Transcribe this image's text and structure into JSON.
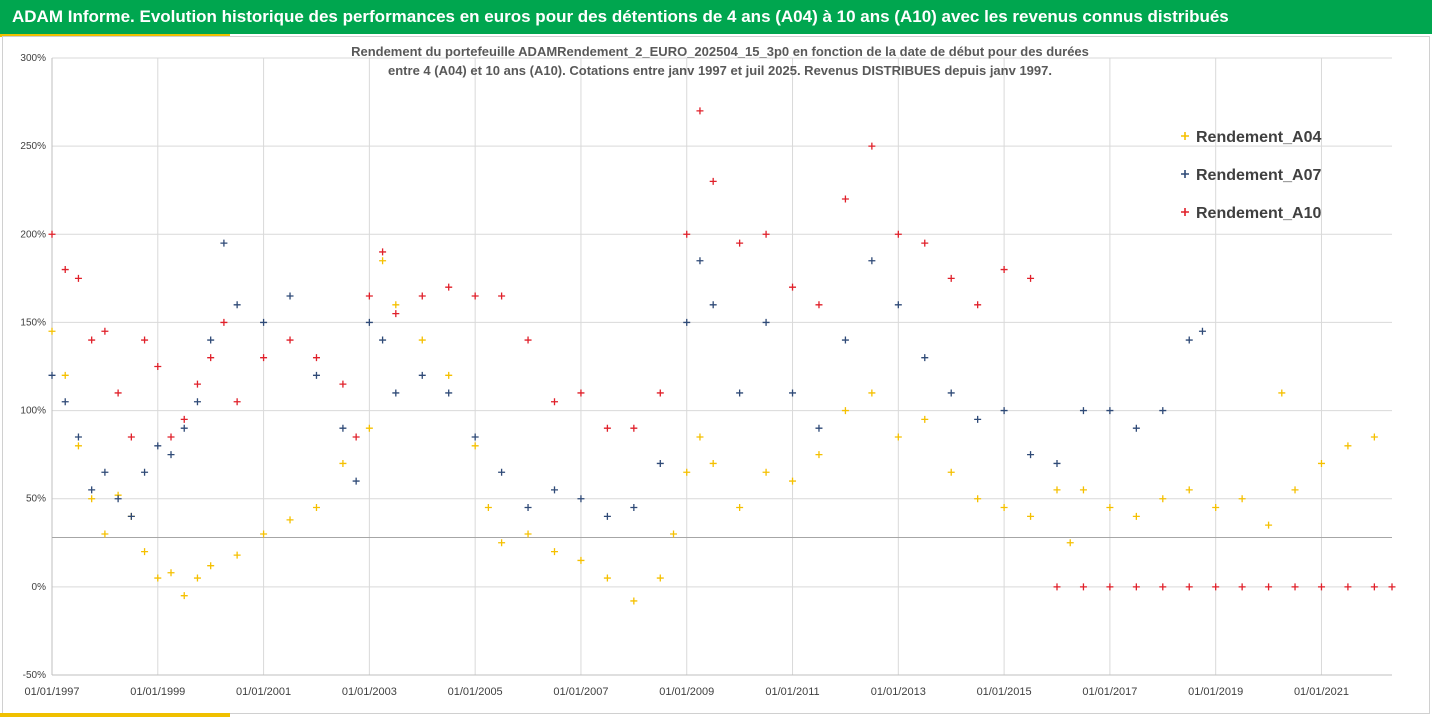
{
  "header": {
    "title": "ADAM Informe. Evolution historique des performances en euros pour des détentions de 4 ans (A04) à 10 ans (A10) avec les revenus connus distribués"
  },
  "colors": {
    "header_bg": "#00a64f",
    "accent": "#f0c000"
  },
  "chart_data": {
    "type": "scatter",
    "subtitle_lines": [
      "Rendement du portefeuille ADAMRendement_2_EURO_202504_15_3p0  en fonction de la date de début pour des durées",
      "entre 4 (A04) et 10 ans (A10). Cotations entre janv 1997 et juil 2025. Revenus DISTRIBUES depuis janv 1997."
    ],
    "ylim": [
      -50,
      300
    ],
    "y_ticks": [
      "300%",
      "250%",
      "200%",
      "150%",
      "100%",
      "50%",
      "0%",
      "-50%"
    ],
    "x_range": [
      "01/01/1997",
      "01/05/2022"
    ],
    "x_ticks": [
      "01/01/1997",
      "01/01/1999",
      "01/01/2001",
      "01/01/2003",
      "01/01/2005",
      "01/01/2007",
      "01/01/2009",
      "01/01/2011",
      "01/01/2013",
      "01/01/2015",
      "01/01/2017",
      "01/01/2019",
      "01/01/2021"
    ],
    "reference_line_y": 28,
    "grid": true,
    "legend_position": "right",
    "marker": "+",
    "series": [
      {
        "name": "Rendement_A04",
        "color": "#f5c000",
        "points": [
          [
            "01/01/1997",
            145
          ],
          [
            "01/04/1997",
            120
          ],
          [
            "01/07/1997",
            80
          ],
          [
            "01/10/1997",
            50
          ],
          [
            "01/01/1998",
            30
          ],
          [
            "01/04/1998",
            52
          ],
          [
            "01/07/1998",
            40
          ],
          [
            "01/10/1998",
            20
          ],
          [
            "01/01/1999",
            5
          ],
          [
            "01/04/1999",
            8
          ],
          [
            "01/07/1999",
            -5
          ],
          [
            "01/10/1999",
            5
          ],
          [
            "01/01/2000",
            12
          ],
          [
            "01/07/2000",
            18
          ],
          [
            "01/01/2001",
            30
          ],
          [
            "01/07/2001",
            38
          ],
          [
            "01/01/2002",
            45
          ],
          [
            "01/07/2002",
            70
          ],
          [
            "01/01/2003",
            90
          ],
          [
            "01/04/2003",
            185
          ],
          [
            "01/07/2003",
            160
          ],
          [
            "01/01/2004",
            140
          ],
          [
            "01/07/2004",
            120
          ],
          [
            "01/01/2005",
            80
          ],
          [
            "01/04/2005",
            45
          ],
          [
            "01/07/2005",
            25
          ],
          [
            "01/01/2006",
            30
          ],
          [
            "01/07/2006",
            20
          ],
          [
            "01/01/2007",
            15
          ],
          [
            "01/07/2007",
            5
          ],
          [
            "01/01/2008",
            -8
          ],
          [
            "01/07/2008",
            5
          ],
          [
            "01/10/2008",
            30
          ],
          [
            "01/01/2009",
            65
          ],
          [
            "01/04/2009",
            85
          ],
          [
            "01/07/2009",
            70
          ],
          [
            "01/01/2010",
            45
          ],
          [
            "01/07/2010",
            65
          ],
          [
            "01/01/2011",
            60
          ],
          [
            "01/07/2011",
            75
          ],
          [
            "01/01/2012",
            100
          ],
          [
            "01/07/2012",
            110
          ],
          [
            "01/01/2013",
            85
          ],
          [
            "01/07/2013",
            95
          ],
          [
            "01/01/2014",
            65
          ],
          [
            "01/07/2014",
            50
          ],
          [
            "01/01/2015",
            45
          ],
          [
            "01/07/2015",
            40
          ],
          [
            "01/01/2016",
            55
          ],
          [
            "01/04/2016",
            25
          ],
          [
            "01/07/2016",
            55
          ],
          [
            "01/01/2017",
            45
          ],
          [
            "01/07/2017",
            40
          ],
          [
            "01/01/2018",
            50
          ],
          [
            "01/07/2018",
            55
          ],
          [
            "01/01/2019",
            45
          ],
          [
            "01/07/2019",
            50
          ],
          [
            "01/01/2020",
            35
          ],
          [
            "01/04/2020",
            110
          ],
          [
            "01/07/2020",
            55
          ],
          [
            "01/01/2021",
            70
          ],
          [
            "01/07/2021",
            80
          ],
          [
            "01/01/2022",
            85
          ]
        ]
      },
      {
        "name": "Rendement_A07",
        "color": "#2f4a77",
        "points": [
          [
            "01/01/1997",
            120
          ],
          [
            "01/04/1997",
            105
          ],
          [
            "01/07/1997",
            85
          ],
          [
            "01/10/1997",
            55
          ],
          [
            "01/01/1998",
            65
          ],
          [
            "01/04/1998",
            50
          ],
          [
            "01/07/1998",
            40
          ],
          [
            "01/10/1998",
            65
          ],
          [
            "01/01/1999",
            80
          ],
          [
            "01/04/1999",
            75
          ],
          [
            "01/07/1999",
            90
          ],
          [
            "01/10/1999",
            105
          ],
          [
            "01/01/2000",
            140
          ],
          [
            "01/04/2000",
            195
          ],
          [
            "01/07/2000",
            160
          ],
          [
            "01/01/2001",
            150
          ],
          [
            "01/07/2001",
            165
          ],
          [
            "01/01/2002",
            120
          ],
          [
            "01/07/2002",
            90
          ],
          [
            "01/10/2002",
            60
          ],
          [
            "01/01/2003",
            150
          ],
          [
            "01/04/2003",
            140
          ],
          [
            "01/07/2003",
            110
          ],
          [
            "01/01/2004",
            120
          ],
          [
            "01/07/2004",
            110
          ],
          [
            "01/01/2005",
            85
          ],
          [
            "01/07/2005",
            65
          ],
          [
            "01/01/2006",
            45
          ],
          [
            "01/07/2006",
            55
          ],
          [
            "01/01/2007",
            50
          ],
          [
            "01/07/2007",
            40
          ],
          [
            "01/01/2008",
            45
          ],
          [
            "01/07/2008",
            70
          ],
          [
            "01/01/2009",
            150
          ],
          [
            "01/04/2009",
            185
          ],
          [
            "01/07/2009",
            160
          ],
          [
            "01/01/2010",
            110
          ],
          [
            "01/07/2010",
            150
          ],
          [
            "01/01/2011",
            110
          ],
          [
            "01/07/2011",
            90
          ],
          [
            "01/01/2012",
            140
          ],
          [
            "01/07/2012",
            185
          ],
          [
            "01/01/2013",
            160
          ],
          [
            "01/07/2013",
            130
          ],
          [
            "01/01/2014",
            110
          ],
          [
            "01/07/2014",
            95
          ],
          [
            "01/01/2015",
            100
          ],
          [
            "01/07/2015",
            75
          ],
          [
            "01/01/2016",
            70
          ],
          [
            "01/07/2016",
            100
          ],
          [
            "01/01/2017",
            100
          ],
          [
            "01/07/2017",
            90
          ],
          [
            "01/01/2018",
            100
          ],
          [
            "01/07/2018",
            140
          ],
          [
            "01/10/2018",
            145
          ]
        ]
      },
      {
        "name": "Rendement_A10",
        "color": "#e0202a",
        "points": [
          [
            "01/01/1997",
            200
          ],
          [
            "01/04/1997",
            180
          ],
          [
            "01/07/1997",
            175
          ],
          [
            "01/10/1997",
            140
          ],
          [
            "01/01/1998",
            145
          ],
          [
            "01/04/1998",
            110
          ],
          [
            "01/07/1998",
            85
          ],
          [
            "01/10/1998",
            140
          ],
          [
            "01/01/1999",
            125
          ],
          [
            "01/04/1999",
            85
          ],
          [
            "01/07/1999",
            95
          ],
          [
            "01/10/1999",
            115
          ],
          [
            "01/01/2000",
            130
          ],
          [
            "01/04/2000",
            150
          ],
          [
            "01/07/2000",
            105
          ],
          [
            "01/01/2001",
            130
          ],
          [
            "01/07/2001",
            140
          ],
          [
            "01/01/2002",
            130
          ],
          [
            "01/07/2002",
            115
          ],
          [
            "01/10/2002",
            85
          ],
          [
            "01/01/2003",
            165
          ],
          [
            "01/04/2003",
            190
          ],
          [
            "01/07/2003",
            155
          ],
          [
            "01/01/2004",
            165
          ],
          [
            "01/07/2004",
            170
          ],
          [
            "01/01/2005",
            165
          ],
          [
            "01/07/2005",
            165
          ],
          [
            "01/01/2006",
            140
          ],
          [
            "01/07/2006",
            105
          ],
          [
            "01/01/2007",
            110
          ],
          [
            "01/07/2007",
            90
          ],
          [
            "01/01/2008",
            90
          ],
          [
            "01/07/2008",
            110
          ],
          [
            "01/01/2009",
            200
          ],
          [
            "01/04/2009",
            270
          ],
          [
            "01/07/2009",
            230
          ],
          [
            "01/01/2010",
            195
          ],
          [
            "01/07/2010",
            200
          ],
          [
            "01/01/2011",
            170
          ],
          [
            "01/07/2011",
            160
          ],
          [
            "01/01/2012",
            220
          ],
          [
            "01/07/2012",
            250
          ],
          [
            "01/01/2013",
            200
          ],
          [
            "01/07/2013",
            195
          ],
          [
            "01/01/2014",
            175
          ],
          [
            "01/07/2014",
            160
          ],
          [
            "01/01/2015",
            180
          ],
          [
            "01/07/2015",
            175
          ],
          [
            "01/01/2016",
            0
          ],
          [
            "01/07/2016",
            0
          ],
          [
            "01/01/2017",
            0
          ],
          [
            "01/07/2017",
            0
          ],
          [
            "01/01/2018",
            0
          ],
          [
            "01/07/2018",
            0
          ],
          [
            "01/01/2019",
            0
          ],
          [
            "01/07/2019",
            0
          ],
          [
            "01/01/2020",
            0
          ],
          [
            "01/07/2020",
            0
          ],
          [
            "01/01/2021",
            0
          ],
          [
            "01/07/2021",
            0
          ],
          [
            "01/01/2022",
            0
          ],
          [
            "01/05/2022",
            0
          ]
        ]
      }
    ]
  }
}
